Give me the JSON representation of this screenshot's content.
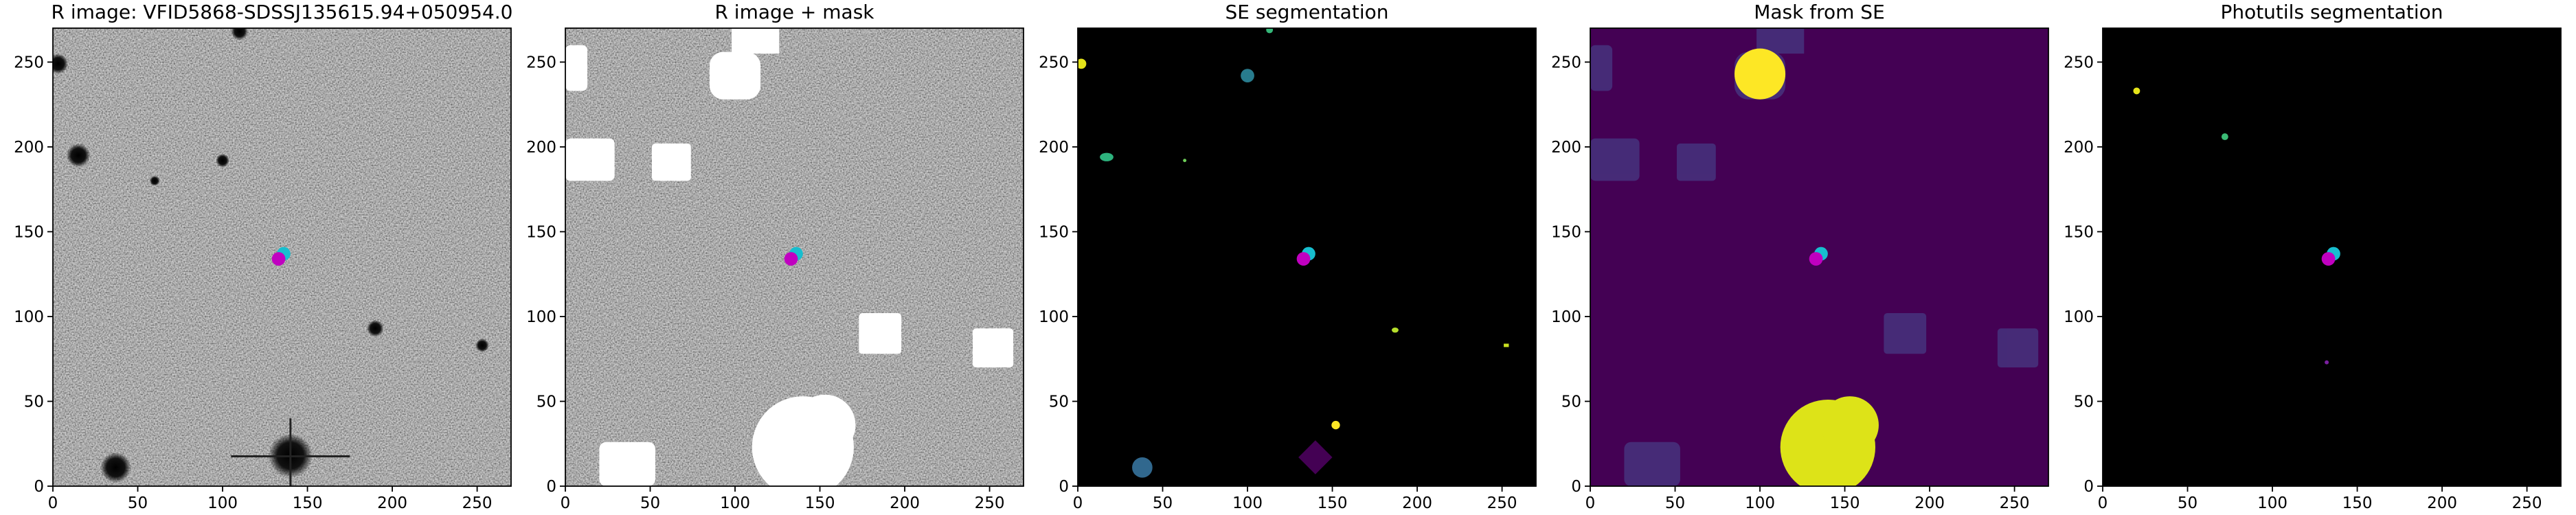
{
  "charts": [
    {
      "type": "image",
      "title": "R image: VFID5868-SDSSJ135615.94+050954.0",
      "xlim": [
        0,
        270
      ],
      "ylim": [
        0,
        270
      ],
      "xticks": [
        0,
        50,
        100,
        150,
        200,
        250
      ],
      "yticks": [
        0,
        50,
        100,
        150,
        200,
        250
      ]
    },
    {
      "type": "image",
      "title": "R image + mask",
      "xlim": [
        0,
        270
      ],
      "ylim": [
        0,
        270
      ],
      "xticks": [
        0,
        50,
        100,
        150,
        200,
        250
      ],
      "yticks": [
        0,
        50,
        100,
        150,
        200,
        250
      ]
    },
    {
      "type": "image",
      "title": "SE segmentation",
      "xlim": [
        0,
        270
      ],
      "ylim": [
        0,
        270
      ],
      "xticks": [
        0,
        50,
        100,
        150,
        200,
        250
      ],
      "yticks": [
        0,
        50,
        100,
        150,
        200,
        250
      ]
    },
    {
      "type": "image",
      "title": "Mask from SE",
      "xlim": [
        0,
        270
      ],
      "ylim": [
        0,
        270
      ],
      "xticks": [
        0,
        50,
        100,
        150,
        200,
        250
      ],
      "yticks": [
        0,
        50,
        100,
        150,
        200,
        250
      ]
    },
    {
      "type": "image",
      "title": "Photutils segmentation",
      "xlim": [
        0,
        270
      ],
      "ylim": [
        0,
        270
      ],
      "xticks": [
        0,
        50,
        100,
        150,
        200,
        250
      ],
      "yticks": [
        0,
        50,
        100,
        150,
        200,
        250
      ]
    }
  ]
}
